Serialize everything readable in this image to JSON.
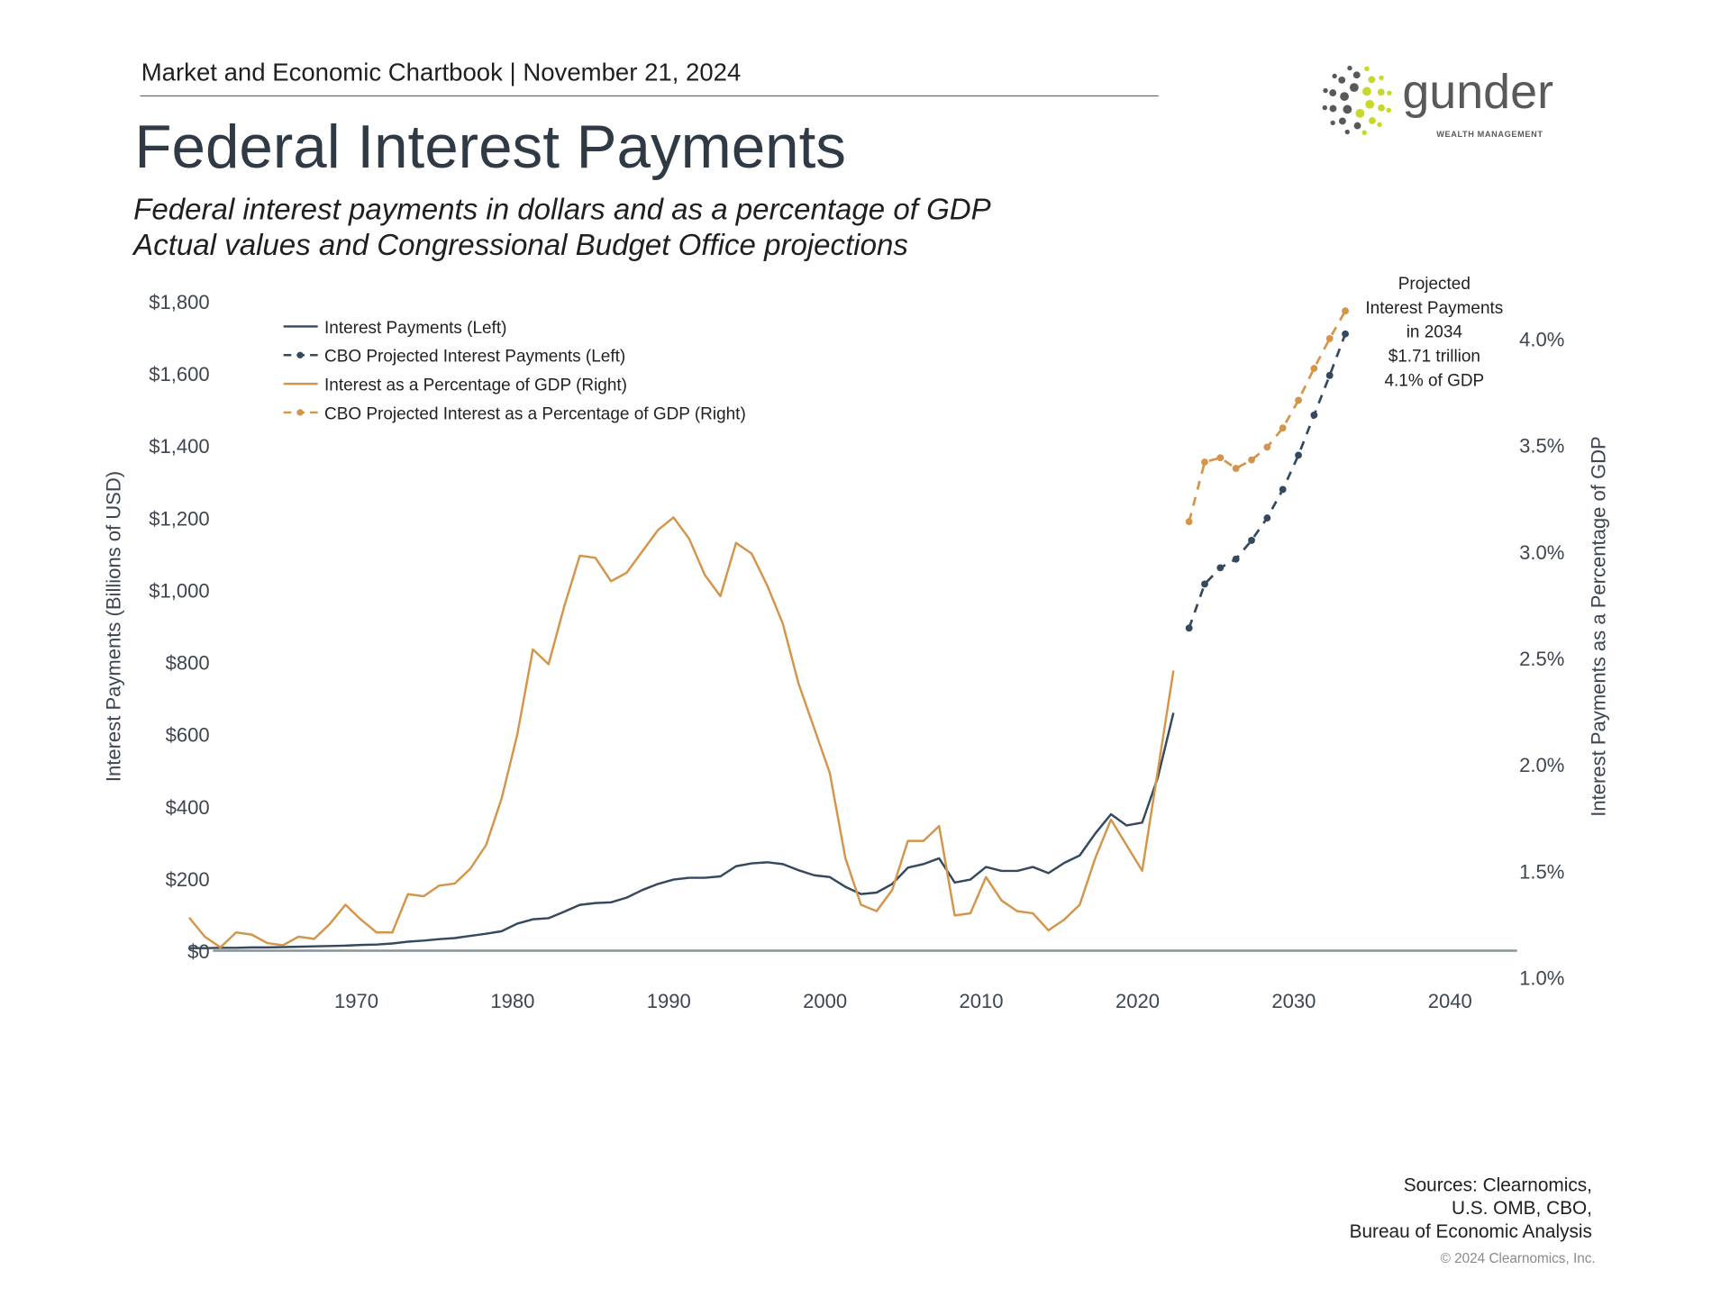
{
  "header": {
    "chartbook": "Market and Economic Chartbook | November 21, 2024",
    "title": "Federal Interest Payments",
    "subtitle_1": "Federal interest payments in dollars and as a percentage of GDP",
    "subtitle_2": "Actual values and Congressional Budget Office projections"
  },
  "logo": {
    "name": "gunder",
    "tagline": "WEALTH MANAGEMENT",
    "colors": {
      "dark": "#58595b",
      "accent": "#c8d82a"
    }
  },
  "footer": {
    "sources_1": "Sources: Clearnomics,",
    "sources_2": "U.S. OMB, CBO,",
    "sources_3": "Bureau of Economic Analysis",
    "copyright": "© 2024 Clearnomics, Inc."
  },
  "chart_data": {
    "type": "line",
    "ylabel_left": "Interest Payments (Billions of USD)",
    "ylabel_right": "Interest Payments as a Percentage of GDP",
    "xlim": [
      1960,
      2044
    ],
    "ylim_left": [
      0,
      1800
    ],
    "ylim_right": [
      1.0,
      4.0
    ],
    "x_ticks": [
      "1970",
      "1980",
      "1990",
      "2000",
      "2010",
      "2020",
      "2030",
      "2040"
    ],
    "y_ticks_left": [
      "$0",
      "$200",
      "$400",
      "$600",
      "$800",
      "$1,000",
      "$1,200",
      "$1,400",
      "$1,600",
      "$1,800"
    ],
    "y_ticks_right": [
      "1.0%",
      "1.5%",
      "2.0%",
      "2.5%",
      "3.0%",
      "3.5%",
      "4.0%"
    ],
    "grid": false,
    "legend_placement": "top-left",
    "colors": {
      "payments": "#34495e",
      "percent": "#d4954a",
      "axis": "#8a9399"
    },
    "series": [
      {
        "name": "Interest Payments (Left)",
        "axis": "left",
        "style": "solid",
        "x_start": 1960,
        "values": [
          7,
          7,
          8,
          8,
          9,
          9,
          10,
          11,
          12,
          13,
          14,
          16,
          17,
          20,
          25,
          28,
          32,
          35,
          41,
          47,
          54,
          75,
          87,
          90,
          108,
          127,
          132,
          134,
          147,
          168,
          185,
          197,
          202,
          202,
          206,
          234,
          242,
          245,
          240,
          223,
          209,
          204,
          177,
          157,
          161,
          185,
          230,
          240,
          256,
          189,
          197,
          232,
          221,
          221,
          232,
          215,
          243,
          264,
          325,
          378,
          347,
          355,
          480,
          659
        ]
      },
      {
        "name": "CBO Projected Interest Payments (Left)",
        "axis": "left",
        "style": "dashed-markers",
        "x_start": 2024,
        "values": [
          894,
          1016,
          1061,
          1085,
          1137,
          1199,
          1278,
          1373,
          1484,
          1594,
          1709
        ]
      },
      {
        "name": "Interest as a Percentage of GDP (Right)",
        "axis": "right",
        "style": "solid",
        "x_start": 1960,
        "values": [
          1.28,
          1.19,
          1.14,
          1.21,
          1.2,
          1.16,
          1.15,
          1.19,
          1.18,
          1.25,
          1.34,
          1.27,
          1.21,
          1.21,
          1.39,
          1.38,
          1.43,
          1.44,
          1.51,
          1.62,
          1.84,
          2.14,
          2.54,
          2.47,
          2.74,
          2.98,
          2.97,
          2.86,
          2.9,
          3.0,
          3.1,
          3.16,
          3.06,
          2.89,
          2.79,
          3.04,
          2.99,
          2.84,
          2.66,
          2.38,
          2.17,
          1.96,
          1.56,
          1.34,
          1.31,
          1.41,
          1.64,
          1.64,
          1.71,
          1.29,
          1.3,
          1.47,
          1.36,
          1.31,
          1.3,
          1.22,
          1.27,
          1.34,
          1.56,
          1.74,
          1.62,
          1.5,
          1.97,
          2.44
        ]
      },
      {
        "name": "CBO Projected Interest as a Percentage of GDP (Right)",
        "axis": "right",
        "style": "dashed-markers",
        "x_start": 2024,
        "values": [
          3.14,
          3.42,
          3.44,
          3.39,
          3.43,
          3.49,
          3.58,
          3.71,
          3.86,
          4.0,
          4.13
        ]
      }
    ],
    "annotation": [
      "Projected",
      "Interest Payments",
      "in 2034",
      "$1.71 trillion",
      "4.1% of GDP"
    ]
  }
}
